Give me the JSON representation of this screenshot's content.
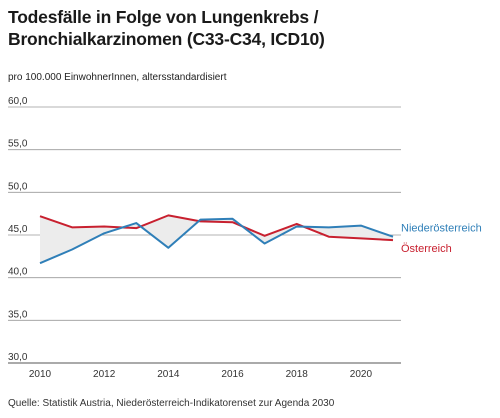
{
  "title_lines": [
    "Todesfälle in Folge von Lungenkrebs /",
    "Bronchialkarzinomen (C33-C34, ICD10)"
  ],
  "subtitle": "pro 100.000 EinwohnerInnen, altersstandardisiert",
  "source": "Quelle: Statistik Austria, Niederösterreich-Indikatorenset zur Agenda 2030",
  "chart_data": {
    "type": "line",
    "title": "Todesfälle in Folge von Lungenkrebs / Bronchialkarzinomen (C33-C34, ICD10)",
    "subtitle": "pro 100.000 EinwohnerInnen, altersstandardisiert",
    "x": [
      2010,
      2011,
      2012,
      2013,
      2014,
      2015,
      2016,
      2017,
      2018,
      2019,
      2020,
      2021
    ],
    "series": [
      {
        "name": "Niederösterreich",
        "color": "#2f7fb8",
        "values": [
          41.7,
          43.3,
          45.2,
          46.4,
          43.5,
          46.8,
          46.9,
          44.0,
          46.0,
          45.9,
          46.1,
          44.8
        ]
      },
      {
        "name": "Österreich",
        "color": "#c8202f",
        "values": [
          47.2,
          45.9,
          46.0,
          45.8,
          47.3,
          46.6,
          46.5,
          44.9,
          46.3,
          44.8,
          44.6,
          44.4
        ]
      }
    ],
    "ylim": [
      30,
      60
    ],
    "yticks": [
      "30,0",
      "35,0",
      "40,0",
      "45,0",
      "50,0",
      "55,0",
      "60,0"
    ],
    "ytick_values": [
      30,
      35,
      40,
      45,
      50,
      55,
      60
    ],
    "xticks": [
      "2010",
      "2012",
      "2014",
      "2016",
      "2018",
      "2020"
    ],
    "xtick_values": [
      2010,
      2012,
      2014,
      2016,
      2018,
      2020
    ],
    "xlim": [
      2010,
      2021
    ],
    "grid": true,
    "legend": "labels at line ends (right)"
  }
}
